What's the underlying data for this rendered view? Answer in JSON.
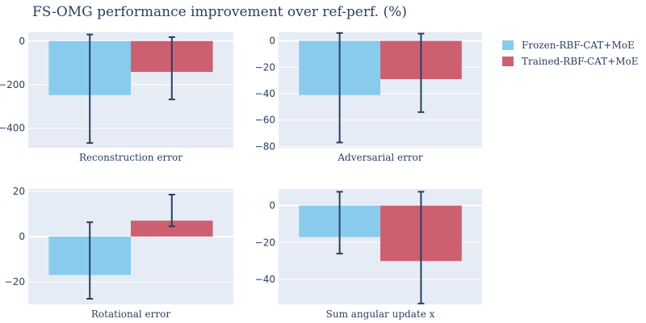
{
  "title": "FS-OMG performance improvement over ref-perf. (%)",
  "colors": {
    "plot_bg": "#e5ecf6",
    "grid": "#ffffff",
    "error_bar": "#2a3f5f",
    "text": "#2a3f5f"
  },
  "legend": [
    {
      "name": "Frozen-RBF-CAT+MoE",
      "color": "#89cbec"
    },
    {
      "name": "Trained-RBF-CAT+MoE",
      "color": "#cd6070"
    }
  ],
  "chart_data": [
    {
      "type": "bar",
      "category": "Reconstruction error",
      "ylim": [
        -490,
        40
      ],
      "ticks": [
        0,
        -200,
        -400
      ],
      "series": [
        {
          "name": "Frozen-RBF-CAT+MoE",
          "value": -248,
          "error_low": -468,
          "error_high": 30
        },
        {
          "name": "Trained-RBF-CAT+MoE",
          "value": -142,
          "error_low": -268,
          "error_high": 18
        }
      ]
    },
    {
      "type": "bar",
      "category": "Adversarial error",
      "ylim": [
        -81,
        6.5
      ],
      "ticks": [
        0,
        -20,
        -40,
        -60,
        -80
      ],
      "series": [
        {
          "name": "Frozen-RBF-CAT+MoE",
          "value": -41,
          "error_low": -77,
          "error_high": 6
        },
        {
          "name": "Trained-RBF-CAT+MoE",
          "value": -29,
          "error_low": -54,
          "error_high": 5.5
        }
      ]
    },
    {
      "type": "bar",
      "category": "Rotational error",
      "ylim": [
        -30,
        21
      ],
      "ticks": [
        20,
        0,
        -20
      ],
      "series": [
        {
          "name": "Frozen-RBF-CAT+MoE",
          "value": -17,
          "error_low": -27.5,
          "error_high": 6.3
        },
        {
          "name": "Trained-RBF-CAT+MoE",
          "value": 7,
          "error_low": 4.5,
          "error_high": 18.5
        }
      ]
    },
    {
      "type": "bar",
      "category": "Sum angular update x",
      "ylim": [
        -53.5,
        9
      ],
      "ticks": [
        0,
        -20,
        -40
      ],
      "series": [
        {
          "name": "Frozen-RBF-CAT+MoE",
          "value": -17,
          "error_low": -26,
          "error_high": 7.5
        },
        {
          "name": "Trained-RBF-CAT+MoE",
          "value": -30,
          "error_low": -53,
          "error_high": 7.5
        }
      ]
    }
  ]
}
